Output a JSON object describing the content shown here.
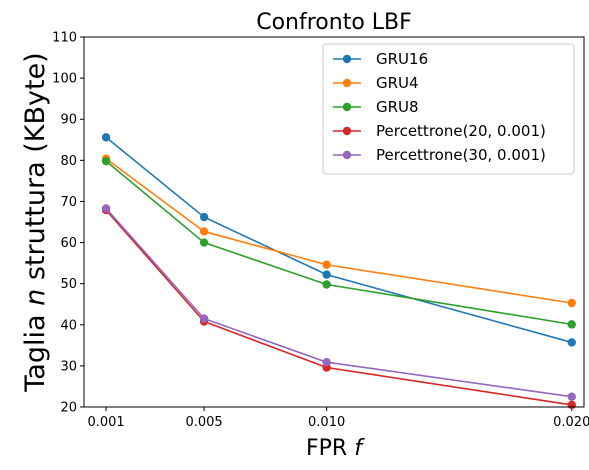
{
  "chart_data": {
    "type": "line",
    "title": "Confronto LBF",
    "xlabel_main": "FPR",
    "xlabel_var": "f",
    "ylabel_main": "Taglia",
    "ylabel_var": "n",
    "ylabel_rest": "struttura (KByte)",
    "x": [
      0.001,
      0.005,
      0.01,
      0.02
    ],
    "x_tick_labels": [
      "0.001",
      "0.005",
      "0.010",
      "0.020"
    ],
    "y_ticks": [
      20,
      30,
      40,
      50,
      60,
      70,
      80,
      90,
      100,
      110
    ],
    "xlim": [
      0.0001,
      0.0205
    ],
    "ylim": [
      20,
      110
    ],
    "grid": false,
    "legend_position": "top-right",
    "series": [
      {
        "name": "GRU16",
        "color": "#1f77b4",
        "values": [
          85.6,
          66.2,
          52.2,
          35.7
        ]
      },
      {
        "name": "GRU4",
        "color": "#ff7f0e",
        "values": [
          80.4,
          62.7,
          54.6,
          45.3
        ]
      },
      {
        "name": "GRU8",
        "color": "#2ca02c",
        "values": [
          79.8,
          60.0,
          49.8,
          40.1
        ]
      },
      {
        "name": "Percettrone(20, 0.001)",
        "color": "#d62728",
        "values": [
          67.9,
          40.8,
          29.6,
          20.5
        ]
      },
      {
        "name": "Percettrone(30, 0.001)",
        "color": "#9467bd",
        "values": [
          68.3,
          41.5,
          30.9,
          22.5
        ]
      }
    ]
  }
}
